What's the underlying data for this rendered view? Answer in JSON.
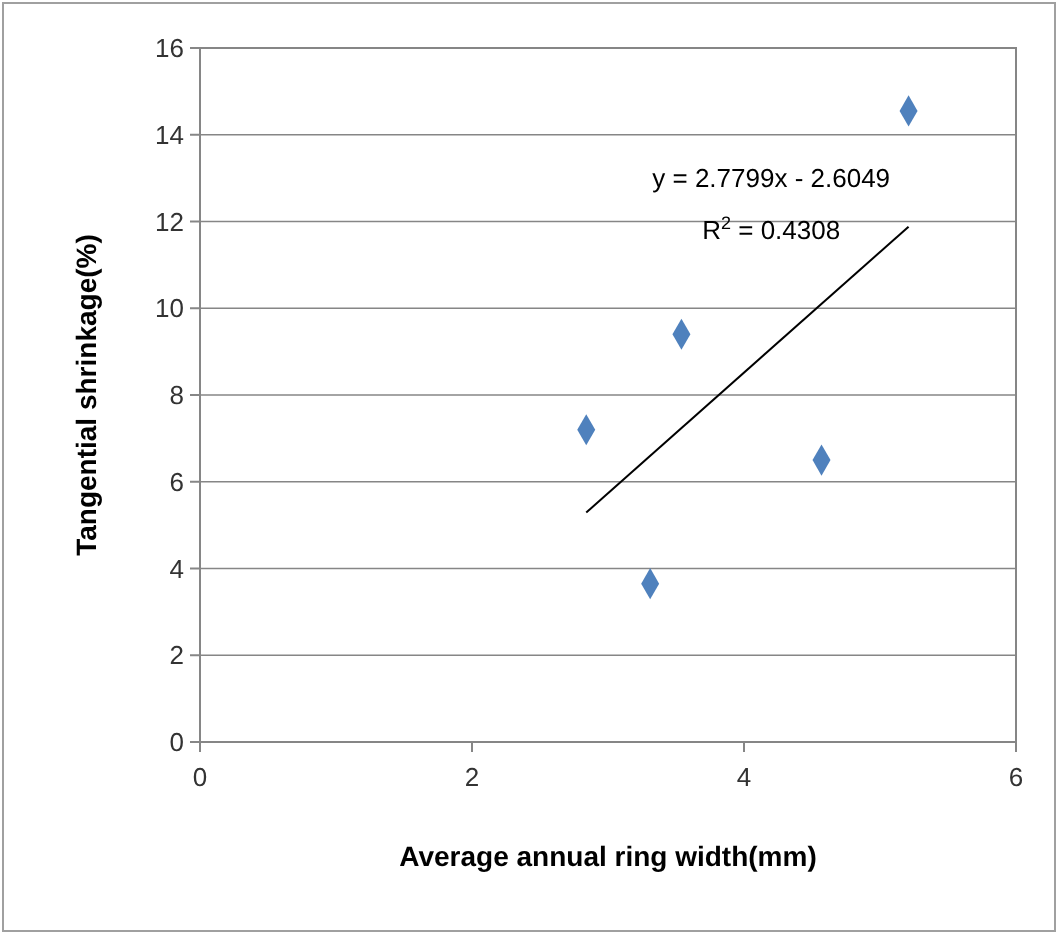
{
  "chart_data": {
    "type": "scatter",
    "xlabel": "Average annual ring width(mm)",
    "ylabel": "Tangential shrinkage(%)",
    "xlim": [
      0,
      6
    ],
    "xticks": [
      0,
      2,
      4,
      6
    ],
    "ylim": [
      0,
      16
    ],
    "yticks": [
      0,
      2,
      4,
      6,
      8,
      10,
      12,
      14,
      16
    ],
    "grid": "y",
    "annotations": [
      "y = 2.7799x - 2.6049",
      "R$^{2}$ = 0.4308"
    ],
    "series": [
      {
        "marker": "diamond",
        "color": "#4f81bd",
        "x": [
          2.84,
          3.31,
          3.54,
          4.57,
          5.21
        ],
        "values": [
          7.2,
          3.65,
          9.4,
          6.5,
          14.55
        ]
      },
      {
        "type": "line",
        "marker": "none",
        "color": "#000000",
        "x": [
          2.84,
          5.21
        ],
        "values": [
          5.29,
          11.88
        ]
      }
    ]
  }
}
